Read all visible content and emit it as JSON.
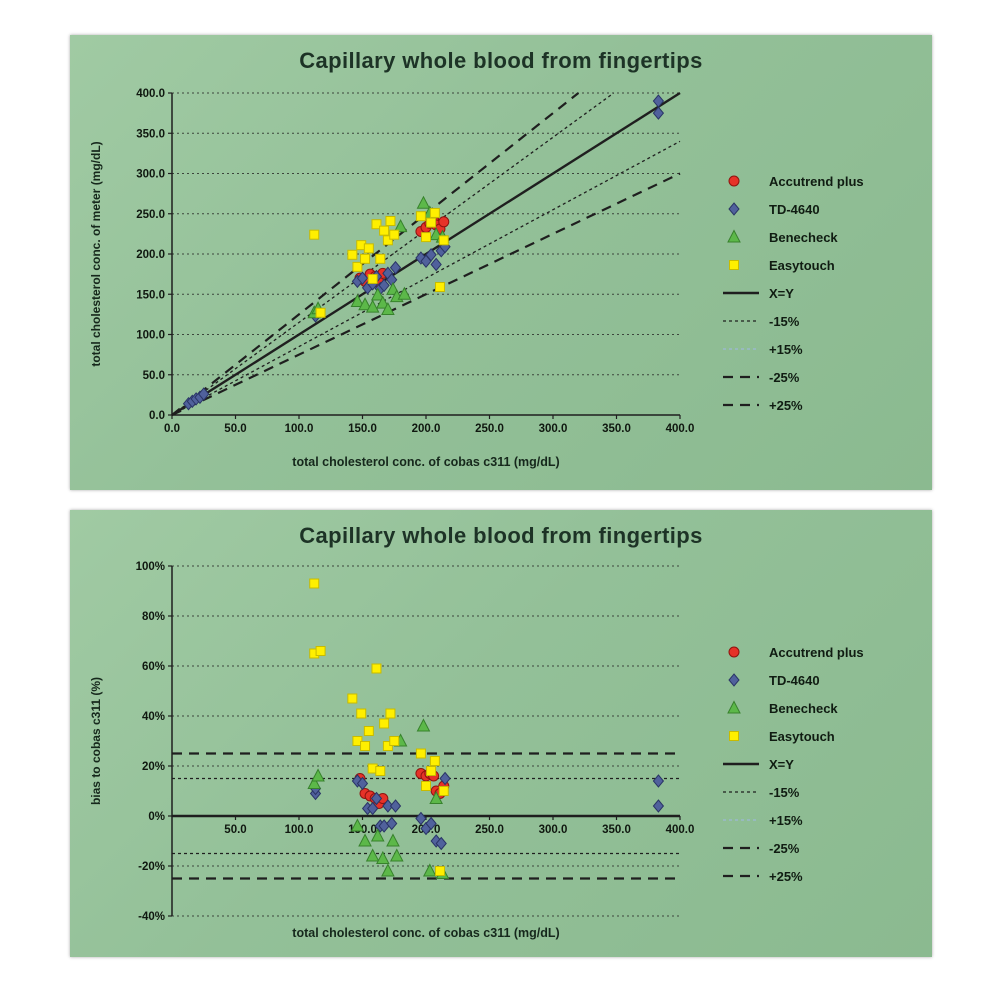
{
  "page": {
    "background": "#ffffff",
    "panel_background": "#93c098",
    "text_color": "#16281c",
    "axis_color": "#1f1f1f",
    "gridline_color": "#3c463c"
  },
  "chart_data": [
    {
      "type": "scatter",
      "title": "Capillary whole blood from fingertips",
      "xlabel": "total cholesterol conc. of cobas c311  (mg/dL)",
      "ylabel": "total cholesterol conc. of meter (mg/dL)",
      "xlim": [
        0,
        400
      ],
      "ylim": [
        0,
        400
      ],
      "grid": true,
      "legend_position": "right",
      "x_axis_at": 0,
      "xticks": [
        {
          "v": 0,
          "label": "0.0"
        },
        {
          "v": 50,
          "label": "50.0"
        },
        {
          "v": 100,
          "label": "100.0"
        },
        {
          "v": 150,
          "label": "150.0"
        },
        {
          "v": 200,
          "label": "200.0"
        },
        {
          "v": 250,
          "label": "250.0"
        },
        {
          "v": 300,
          "label": "300.0"
        },
        {
          "v": 350,
          "label": "350.0"
        },
        {
          "v": 400,
          "label": "400.0"
        }
      ],
      "yticks": [
        {
          "v": 0,
          "label": "0.0"
        },
        {
          "v": 50,
          "label": "50.0"
        },
        {
          "v": 100,
          "label": "100.0"
        },
        {
          "v": 150,
          "label": "150.0"
        },
        {
          "v": 200,
          "label": "200.0"
        },
        {
          "v": 250,
          "label": "250.0"
        },
        {
          "v": 300,
          "label": "300.0"
        },
        {
          "v": 350,
          "label": "350.0"
        },
        {
          "v": 400,
          "label": "400.0"
        }
      ],
      "reference_lines": [
        {
          "name": "X=Y",
          "style": "solid",
          "slope": 1.0
        },
        {
          "name": "-15%",
          "style": "dot",
          "slope": 0.85
        },
        {
          "name": "+15%",
          "style": "dot",
          "slope": 1.15,
          "legend_color": "#9db8d8"
        },
        {
          "name": "-25%",
          "style": "dash",
          "slope": 0.75
        },
        {
          "name": "+25%",
          "style": "dash",
          "slope": 1.25
        }
      ],
      "series": [
        {
          "name": "Accutrend plus",
          "marker": "circle",
          "color": "#e63228",
          "outline": "#8e1410",
          "points": [
            [
              148,
              170
            ],
            [
              152,
              166
            ],
            [
              156,
              175
            ],
            [
              160,
              172
            ],
            [
              163,
              165
            ],
            [
              166,
              176
            ],
            [
              196,
              228
            ],
            [
              200,
              233
            ],
            [
              203,
              238
            ],
            [
              206,
              242
            ],
            [
              208,
              236
            ],
            [
              211,
              231
            ],
            [
              214,
              240
            ]
          ]
        },
        {
          "name": "TD-4640",
          "marker": "diamond",
          "color": "#50619c",
          "outline": "#2a3566",
          "points": [
            [
              13,
              14
            ],
            [
              16,
              17
            ],
            [
              19,
              20
            ],
            [
              22,
              22
            ],
            [
              25,
              26
            ],
            [
              113,
              123
            ],
            [
              146,
              166
            ],
            [
              150,
              170
            ],
            [
              154,
              158
            ],
            [
              158,
              163
            ],
            [
              161,
              172
            ],
            [
              164,
              157
            ],
            [
              167,
              161
            ],
            [
              170,
              176
            ],
            [
              173,
              168
            ],
            [
              176,
              183
            ],
            [
              196,
              195
            ],
            [
              200,
              191
            ],
            [
              204,
              199
            ],
            [
              208,
              187
            ],
            [
              212,
              204
            ],
            [
              215,
              209
            ],
            [
              383,
              390
            ],
            [
              383,
              375
            ]
          ]
        },
        {
          "name": "Benecheck",
          "marker": "triangle",
          "color": "#5cb849",
          "outline": "#37822c",
          "points": [
            [
              112,
              127
            ],
            [
              115,
              132
            ],
            [
              146,
              141
            ],
            [
              152,
              137
            ],
            [
              158,
              134
            ],
            [
              162,
              149
            ],
            [
              166,
              139
            ],
            [
              170,
              131
            ],
            [
              174,
              156
            ],
            [
              177,
              147
            ],
            [
              180,
              234
            ],
            [
              183,
              150
            ],
            [
              198,
              263
            ],
            [
              203,
              251
            ],
            [
              208,
              224
            ],
            [
              213,
              221
            ]
          ]
        },
        {
          "name": "Easytouch",
          "marker": "square",
          "color": "#ffef00",
          "outline": "#c8bb00",
          "points": [
            [
              112,
              224
            ],
            [
              117,
              127
            ],
            [
              142,
              199
            ],
            [
              146,
              184
            ],
            [
              149,
              211
            ],
            [
              152,
              194
            ],
            [
              155,
              207
            ],
            [
              158,
              169
            ],
            [
              161,
              237
            ],
            [
              164,
              194
            ],
            [
              167,
              229
            ],
            [
              170,
              217
            ],
            [
              172,
              241
            ],
            [
              175,
              224
            ],
            [
              196,
              247
            ],
            [
              200,
              221
            ],
            [
              204,
              239
            ],
            [
              207,
              251
            ],
            [
              211,
              159
            ],
            [
              214,
              217
            ]
          ]
        }
      ]
    },
    {
      "type": "scatter",
      "title": "Capillary whole blood from fingertips",
      "xlabel": "total cholesterol conc. of cobas c311  (mg/dL)",
      "ylabel": "bias to cobas c311 (%)",
      "xlim": [
        0,
        400
      ],
      "ylim": [
        -40,
        100
      ],
      "grid": true,
      "legend_position": "right",
      "x_axis_at": 0,
      "xticks": [
        {
          "v": 50,
          "label": "50.0"
        },
        {
          "v": 100,
          "label": "100.0"
        },
        {
          "v": 150,
          "label": "150.0"
        },
        {
          "v": 200,
          "label": "200.0"
        },
        {
          "v": 250,
          "label": "250.0"
        },
        {
          "v": 300,
          "label": "300.0"
        },
        {
          "v": 350,
          "label": "350.0"
        },
        {
          "v": 400,
          "label": "400.0"
        }
      ],
      "yticks": [
        {
          "v": -40,
          "label": "-40%"
        },
        {
          "v": -20,
          "label": "-20%"
        },
        {
          "v": 0,
          "label": "0%"
        },
        {
          "v": 20,
          "label": "20%"
        },
        {
          "v": 40,
          "label": "40%"
        },
        {
          "v": 60,
          "label": "60%"
        },
        {
          "v": 80,
          "label": "80%"
        },
        {
          "v": 100,
          "label": "100%"
        }
      ],
      "reference_lines": [
        {
          "name": "X=Y",
          "style": "solid",
          "y": 0
        },
        {
          "name": "-15%",
          "style": "dot",
          "y": -15
        },
        {
          "name": "+15%",
          "style": "dot",
          "y": 15,
          "legend_color": "#9db8d8"
        },
        {
          "name": "-25%",
          "style": "dash",
          "y": -25
        },
        {
          "name": "+25%",
          "style": "dash",
          "y": 25
        }
      ],
      "series": [
        {
          "name": "Accutrend plus",
          "marker": "circle",
          "color": "#e63228",
          "outline": "#8e1410",
          "points": [
            [
              148,
              15
            ],
            [
              152,
              9
            ],
            [
              156,
              8
            ],
            [
              160,
              7
            ],
            [
              163,
              5
            ],
            [
              166,
              7
            ],
            [
              196,
              17
            ],
            [
              200,
              16
            ],
            [
              203,
              17
            ],
            [
              206,
              16
            ],
            [
              208,
              10
            ],
            [
              211,
              9
            ],
            [
              214,
              12
            ]
          ]
        },
        {
          "name": "TD-4640",
          "marker": "diamond",
          "color": "#50619c",
          "outline": "#2a3566",
          "points": [
            [
              113,
              9
            ],
            [
              113,
              11
            ],
            [
              146,
              14
            ],
            [
              150,
              13
            ],
            [
              154,
              3
            ],
            [
              158,
              3
            ],
            [
              161,
              7
            ],
            [
              164,
              -4
            ],
            [
              167,
              -4
            ],
            [
              170,
              4
            ],
            [
              173,
              -3
            ],
            [
              176,
              4
            ],
            [
              196,
              -1
            ],
            [
              200,
              -5
            ],
            [
              204,
              -3
            ],
            [
              208,
              -10
            ],
            [
              212,
              -11
            ],
            [
              215,
              15
            ],
            [
              383,
              14
            ],
            [
              383,
              4
            ]
          ]
        },
        {
          "name": "Benecheck",
          "marker": "triangle",
          "color": "#5cb849",
          "outline": "#37822c",
          "points": [
            [
              112,
              13
            ],
            [
              115,
              16
            ],
            [
              146,
              -4
            ],
            [
              152,
              -10
            ],
            [
              158,
              -16
            ],
            [
              162,
              -8
            ],
            [
              166,
              -17
            ],
            [
              170,
              -22
            ],
            [
              174,
              -10
            ],
            [
              177,
              -16
            ],
            [
              180,
              30
            ],
            [
              198,
              36
            ],
            [
              203,
              -22
            ],
            [
              208,
              7
            ],
            [
              213,
              -23
            ]
          ]
        },
        {
          "name": "Easytouch",
          "marker": "square",
          "color": "#ffef00",
          "outline": "#c8bb00",
          "points": [
            [
              112,
              93
            ],
            [
              112,
              65
            ],
            [
              117,
              66
            ],
            [
              142,
              47
            ],
            [
              146,
              30
            ],
            [
              149,
              41
            ],
            [
              152,
              28
            ],
            [
              155,
              34
            ],
            [
              158,
              19
            ],
            [
              161,
              59
            ],
            [
              164,
              18
            ],
            [
              167,
              37
            ],
            [
              170,
              28
            ],
            [
              172,
              41
            ],
            [
              175,
              30
            ],
            [
              196,
              25
            ],
            [
              200,
              12
            ],
            [
              204,
              18
            ],
            [
              207,
              22
            ],
            [
              211,
              -22
            ],
            [
              214,
              10
            ]
          ]
        }
      ]
    }
  ]
}
